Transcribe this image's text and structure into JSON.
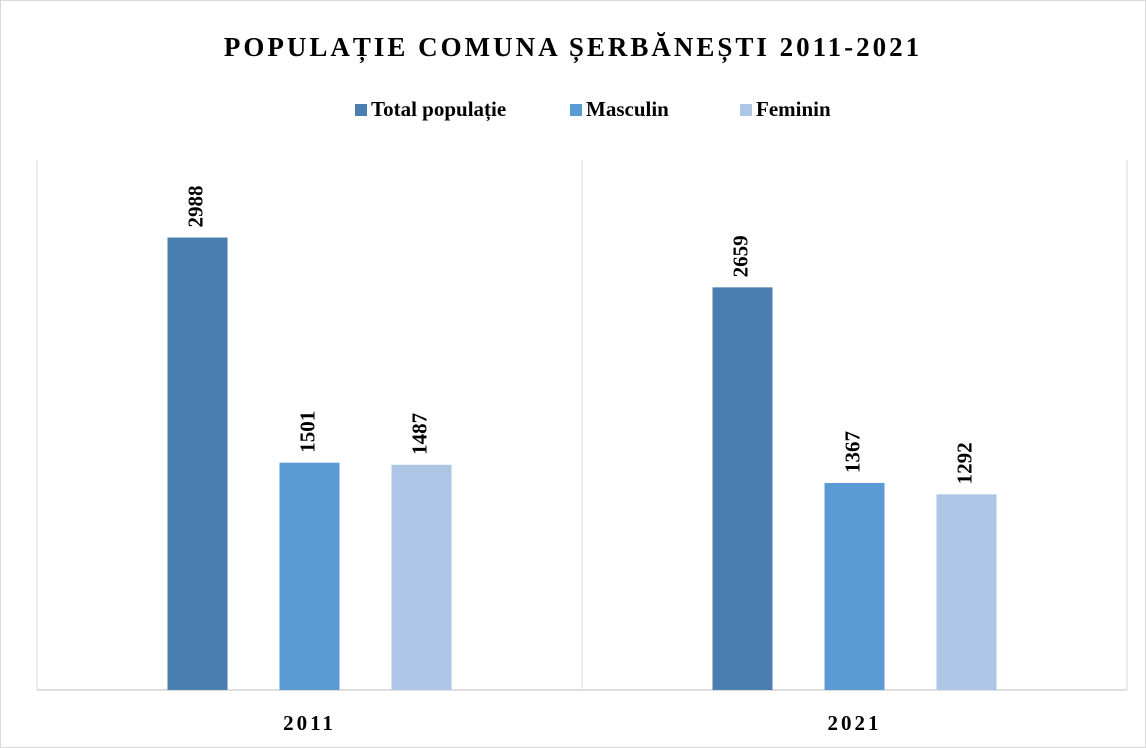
{
  "chart_data": {
    "type": "bar",
    "title": "POPULAȚIE COMUNA ȘERBĂNEȘTI 2011-2021",
    "categories": [
      "2011",
      "2021"
    ],
    "series": [
      {
        "name": "Total populație",
        "color": "#4a7eb0",
        "values": [
          2988,
          2659
        ]
      },
      {
        "name": "Masculin",
        "color": "#5b9bd5",
        "values": [
          1501,
          1367
        ]
      },
      {
        "name": "Feminin",
        "color": "#adc6e5",
        "values": [
          1487,
          1292
        ]
      }
    ],
    "ylim": [
      0,
      3500
    ],
    "legend": "top"
  }
}
